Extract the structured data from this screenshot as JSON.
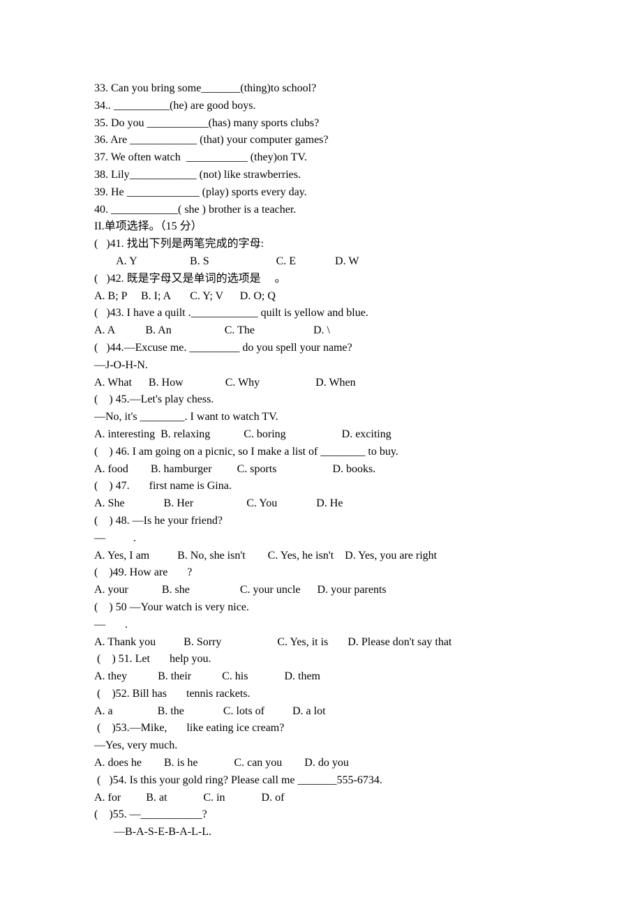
{
  "fillins": [
    {
      "num": "33",
      "pre": ". Can you bring some",
      "blank": "_______",
      "hint": "(thing)",
      "post": "to school?"
    },
    {
      "num": "34",
      "pre": ".. ",
      "blank": "__________",
      "hint": "(he)",
      "post": " are good boys."
    },
    {
      "num": "35",
      "pre": ". Do you ",
      "blank": "___________",
      "hint": "(has)",
      "post": " many sports clubs?"
    },
    {
      "num": "36",
      "pre": ". Are ",
      "blank": "____________ ",
      "hint": "(that)",
      "post": " your computer games?"
    },
    {
      "num": "37",
      "pre": ". We often watch  ",
      "blank": "___________ ",
      "hint": "(they)",
      "post": "on TV."
    },
    {
      "num": "38",
      "pre": ". Lily",
      "blank": "____________ ",
      "hint": "(not)",
      "post": " like strawberries."
    },
    {
      "num": "39",
      "pre": ". He ",
      "blank": "_____________ ",
      "hint": "(play)",
      "post": " sports every day."
    },
    {
      "num": "40",
      "pre": ". ",
      "blank": "____________",
      "hint": "( she )",
      "post": " brother is a teacher."
    }
  ],
  "section2_title": "II.单项选择。（15 分）",
  "mcq": {
    "q41": {
      "stem": "(   )41. 找出下列是两笔完成的字母:",
      "opts": "        A. Y                   B. S                        C. E              D. W"
    },
    "q42": {
      "stem": "(   )42. 既是字母又是单词的选项是     。",
      "opts": "A. B; P     B. I; A       C. Y; V      D. O; Q"
    },
    "q43": {
      "stem": "(   )43. I have a quilt .____________ quilt is yellow and blue.",
      "opts": "A. A           B. An                   C. The                     D. \\"
    },
    "q44": {
      "stem": "(   )44.―Excuse me. _________ do you spell your name?",
      "resp": "―J-O-H-N.",
      "opts": "A. What      B. How               C. Why                    D. When"
    },
    "q45": {
      "stem": "(    ) 45.―Let's play chess.",
      "resp": "―No, it's ________. I want to watch TV.",
      "opts": "A. interesting  B. relaxing            C. boring                    D. exciting"
    },
    "q46": {
      "stem": "(    ) 46. I am going on a picnic, so I make a list of ________ to buy.",
      "opts": "A. food        B. hamburger         C. sports                    D. books."
    },
    "q47": {
      "stem": "(    ) 47.       first name is Gina.",
      "opts": "A. She              B. Her                   C. You              D. He"
    },
    "q48": {
      "stem": "(    ) 48. ―Is he your friend?",
      "resp": "―          .",
      "opts": "A. Yes, I am          B. No, she isn't        C. Yes, he isn't    D. Yes, you are right"
    },
    "q49": {
      "stem": "(    )49. How are       ?",
      "opts": "A. your            B. she                  C. your uncle      D. your parents"
    },
    "q50": {
      "stem": "(    ) 50 ―Your watch is very nice.",
      "resp": "―       .",
      "opts": "A. Thank you          B. Sorry                    C. Yes, it is       D. Please don't say that"
    },
    "q51": {
      "stem": " (    ) 51. Let       help you.",
      "opts": "A. they           B. their           C. his             D. them"
    },
    "q52": {
      "stem": " (    )52. Bill has       tennis rackets.",
      "opts": "A. a                B. the              C. lots of          D. a lot"
    },
    "q53": {
      "stem": " (    )53.―Mike,       like eating ice cream?",
      "resp": "―Yes, very much.",
      "opts": "A. does he        B. is he             C. can you        D. do you"
    },
    "q54": {
      "stem": " (   )54. Is this your gold ring? Please call me _______555-6734.",
      "opts": "A. for         B. at             C. in             D. of"
    },
    "q55": {
      "stem": "(    )55. ―___________?",
      "resp": "       ―B-A-S-E-B-A-L-L."
    }
  }
}
